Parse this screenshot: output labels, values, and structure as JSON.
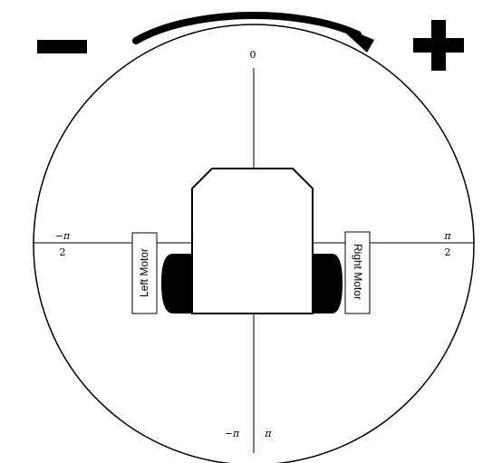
{
  "direction": {
    "minus": "−",
    "plus": "+"
  },
  "angles": {
    "top": "0",
    "left_num": "−π",
    "left_den": "2",
    "right_num": "π",
    "right_den": "2",
    "bottom_left": "−π",
    "bottom_right": "π"
  },
  "motors": {
    "left": "Left Motor",
    "right": "Right Motor"
  }
}
